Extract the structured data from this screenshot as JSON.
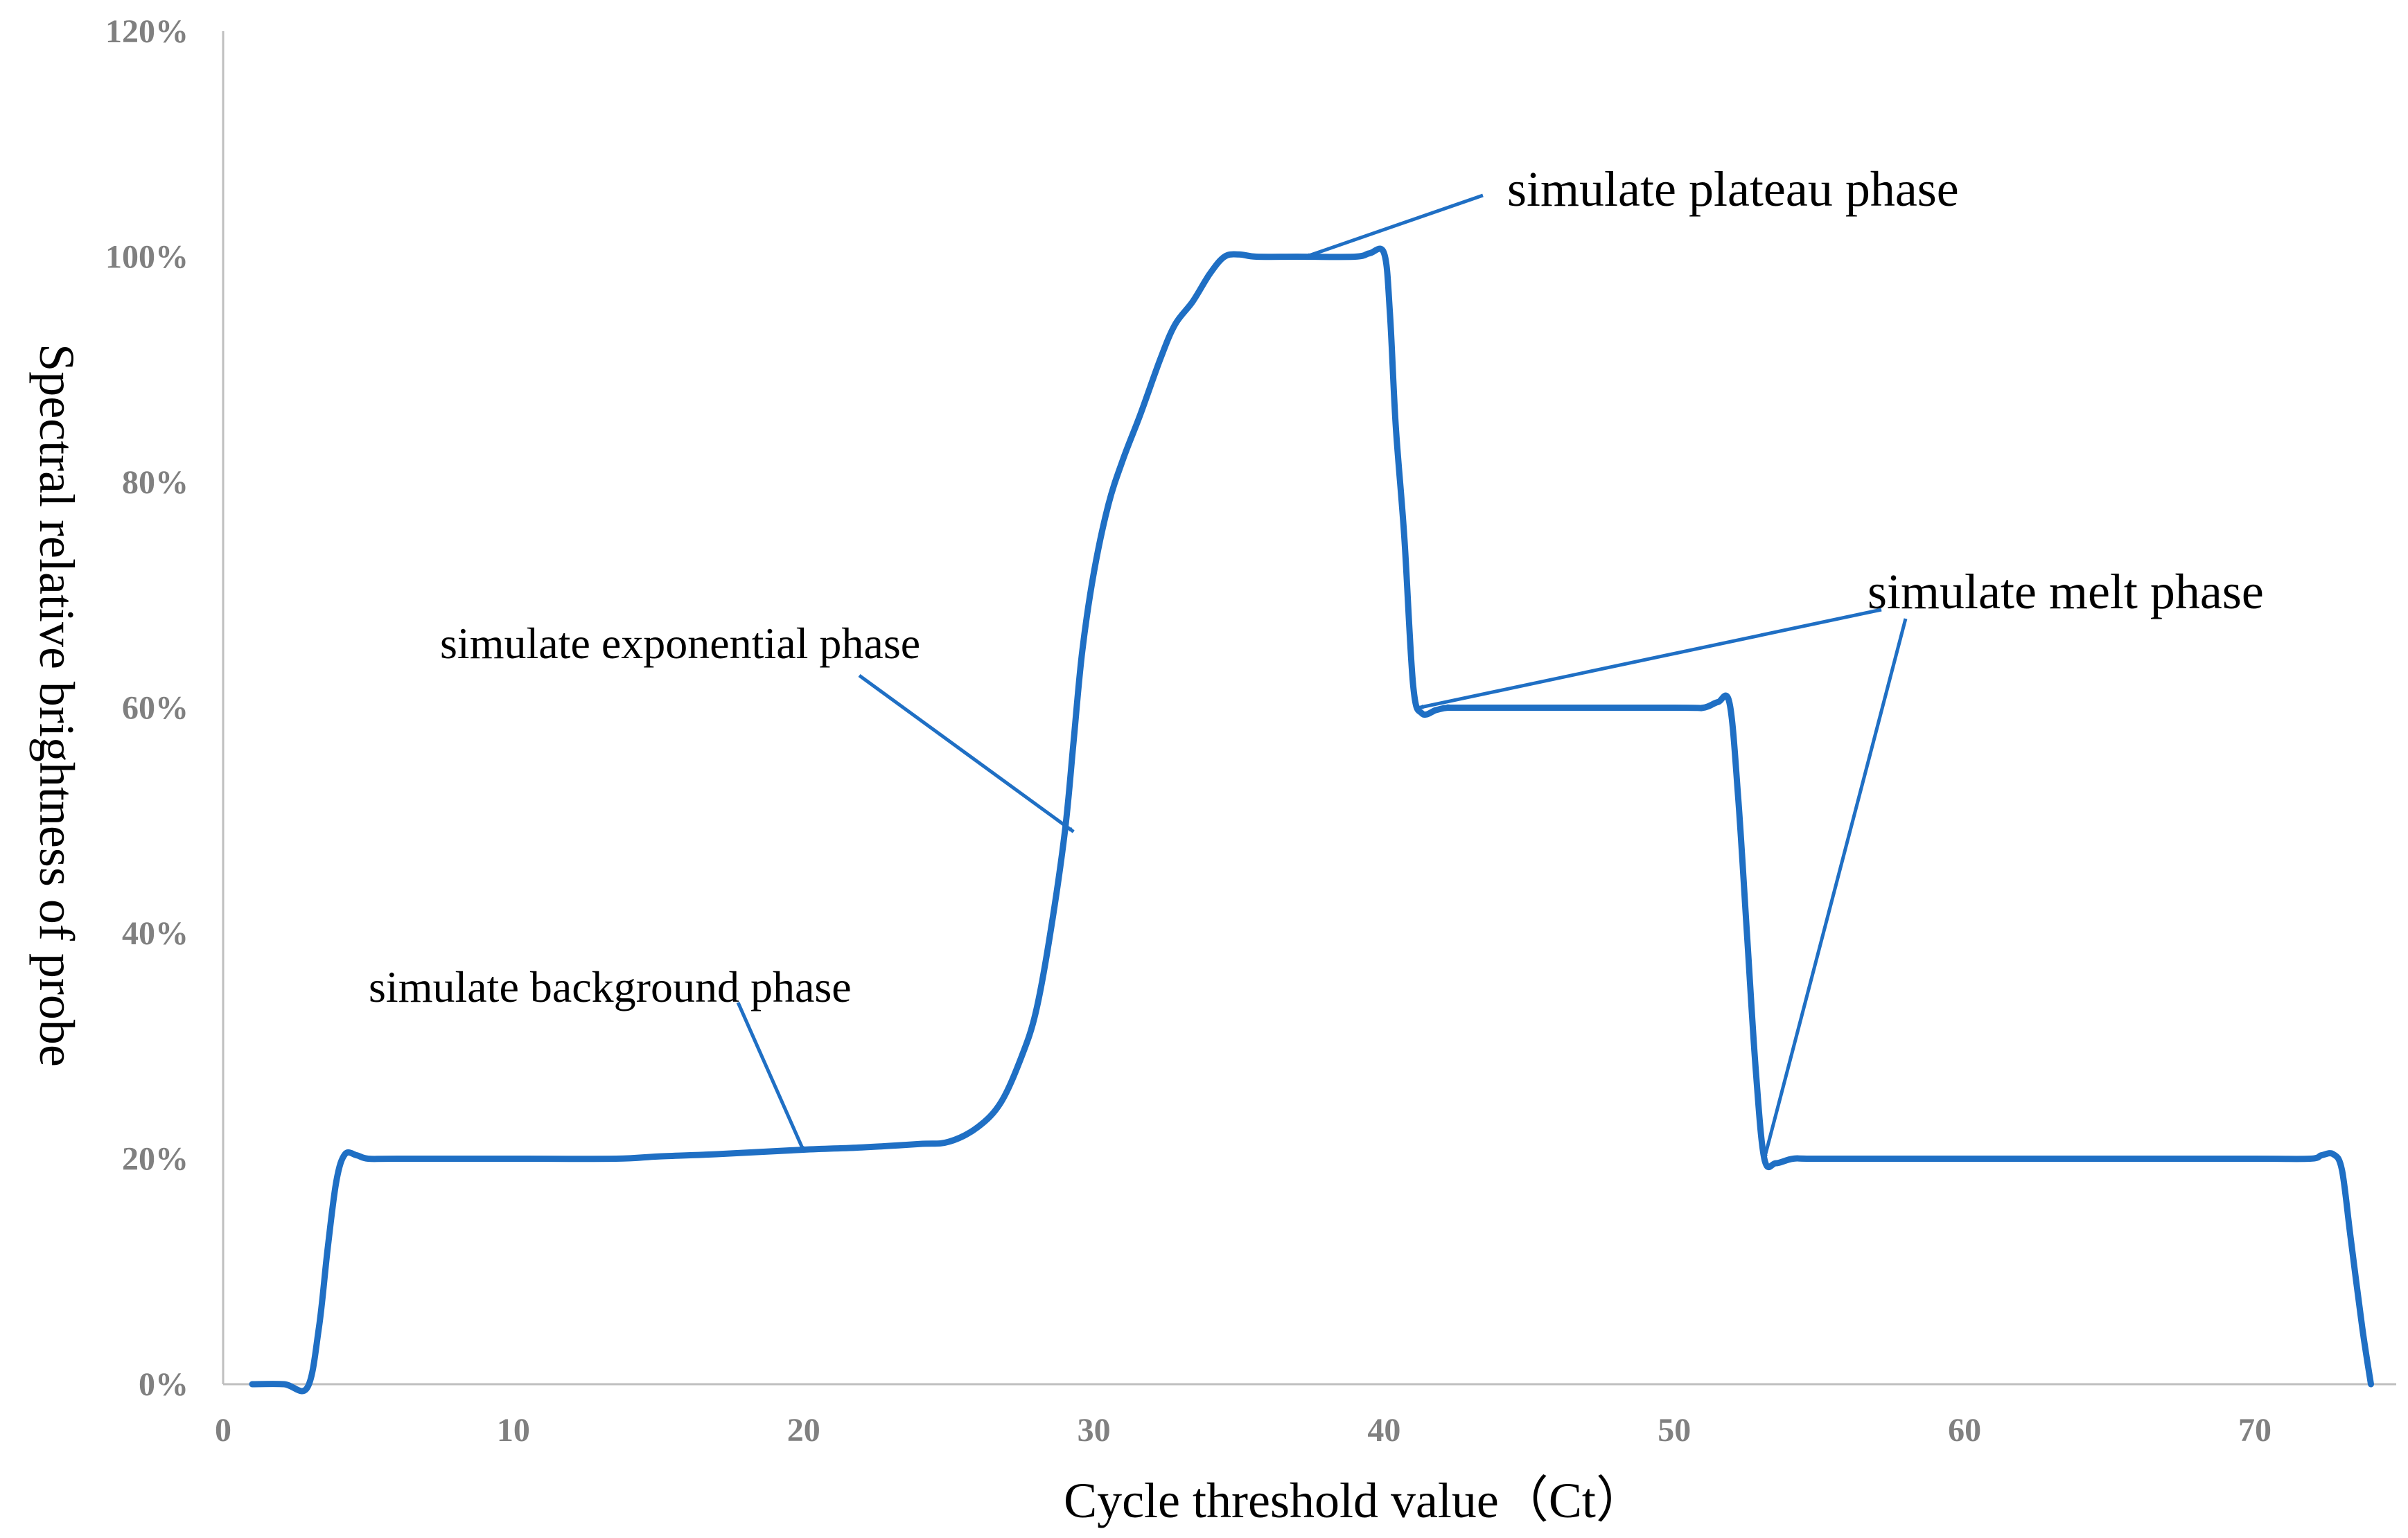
{
  "chart_data": {
    "type": "line",
    "title": "",
    "xlabel": "Cycle threshold value（Ct）",
    "ylabel": "Spectral relative brightness of probe",
    "xlim": [
      0,
      75
    ],
    "ylim": [
      0,
      120
    ],
    "x_ticks": [
      0,
      10,
      20,
      30,
      40,
      50,
      60,
      70
    ],
    "x_tick_labels": [
      "0",
      "10",
      "20",
      "30",
      "40",
      "50",
      "60",
      "70"
    ],
    "y_ticks": [
      0,
      20,
      40,
      60,
      80,
      100,
      120
    ],
    "y_tick_labels": [
      "0%",
      "20%",
      "40%",
      "60%",
      "80%",
      "100%",
      "120%"
    ],
    "grid": false,
    "legend": "none",
    "line_color": "#1F6FC4",
    "series": [
      {
        "points": [
          [
            1,
            0
          ],
          [
            2.1,
            0
          ],
          [
            2.9,
            -0.3
          ],
          [
            3.3,
            5
          ],
          [
            3.6,
            12
          ],
          [
            3.9,
            18
          ],
          [
            4.2,
            20.4
          ],
          [
            4.6,
            20.3
          ],
          [
            5,
            20
          ],
          [
            6,
            20
          ],
          [
            10,
            20
          ],
          [
            13.5,
            20
          ],
          [
            15,
            20.2
          ],
          [
            17,
            20.4
          ],
          [
            20,
            20.8
          ],
          [
            22,
            21
          ],
          [
            24,
            21.3
          ],
          [
            25,
            21.5
          ],
          [
            26,
            22.8
          ],
          [
            26.8,
            25
          ],
          [
            27.5,
            29
          ],
          [
            28,
            33
          ],
          [
            28.5,
            40
          ],
          [
            29,
            49
          ],
          [
            29.3,
            57
          ],
          [
            29.6,
            65
          ],
          [
            30,
            72
          ],
          [
            30.5,
            78
          ],
          [
            31,
            82
          ],
          [
            31.6,
            86
          ],
          [
            32.3,
            91
          ],
          [
            32.8,
            94
          ],
          [
            33.4,
            96
          ],
          [
            34,
            98.5
          ],
          [
            34.5,
            100
          ],
          [
            35,
            100.2
          ],
          [
            35.6,
            100
          ],
          [
            37,
            100
          ],
          [
            39,
            100
          ],
          [
            39.5,
            100.3
          ],
          [
            40,
            100.3
          ],
          [
            40.2,
            95
          ],
          [
            40.4,
            85
          ],
          [
            40.7,
            75
          ],
          [
            41,
            62
          ],
          [
            41.3,
            59.5
          ],
          [
            41.8,
            59.8
          ],
          [
            42.2,
            60
          ],
          [
            43,
            60
          ],
          [
            50,
            60
          ],
          [
            51,
            60
          ],
          [
            51.5,
            60.5
          ],
          [
            51.9,
            60.4
          ],
          [
            52.2,
            52
          ],
          [
            52.5,
            40
          ],
          [
            52.8,
            28
          ],
          [
            53.1,
            20
          ],
          [
            53.5,
            19.6
          ],
          [
            54.1,
            20
          ],
          [
            55,
            20
          ],
          [
            60,
            20
          ],
          [
            65,
            20
          ],
          [
            70,
            20
          ],
          [
            71.9,
            20
          ],
          [
            72.3,
            20.3
          ],
          [
            72.7,
            20.4
          ],
          [
            73,
            19
          ],
          [
            73.3,
            13
          ],
          [
            73.7,
            5
          ],
          [
            74,
            0
          ]
        ]
      }
    ],
    "annotations": [
      {
        "text": "simulate plateau phase",
        "point_x": 37.3,
        "point_y": 100
      },
      {
        "text": "simulate exponential phase",
        "point_x": 29.3,
        "point_y": 49
      },
      {
        "text": "simulate melt phase",
        "point_x": 41.2,
        "point_y": 60,
        "point2_x": 53.1,
        "point2_y": 20
      },
      {
        "text": "simulate background phase",
        "point_x": 20,
        "point_y": 20.7
      }
    ]
  }
}
